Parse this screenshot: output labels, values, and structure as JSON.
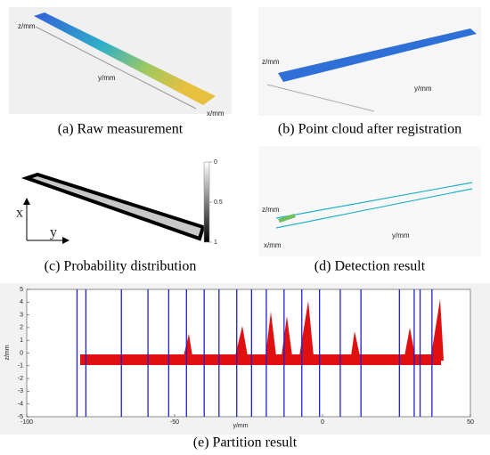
{
  "panels": {
    "a": {
      "caption": "(a) Raw measurement",
      "z_label": "z/mm",
      "y_label": "y/mm",
      "x_label": "x/mm"
    },
    "b": {
      "caption": "(b) Point cloud after registration",
      "z_label": "z/mm",
      "y_label": "y/mm"
    },
    "c": {
      "caption": "(c) Probability distribution",
      "x_label": "x",
      "y_label": "y",
      "colorbar_ticks": [
        0,
        0.5,
        1
      ]
    },
    "d": {
      "caption": "(d) Detection result",
      "z_label": "z/mm",
      "y_label": "y/mm",
      "x_label": "x/mm"
    },
    "e": {
      "caption": "(e) Partition result",
      "x_label": "y/mm",
      "y_label": "z/mm",
      "xlim": [
        -100,
        50
      ],
      "ylim": [
        -5,
        5
      ],
      "xticks": [
        -100,
        -50,
        0,
        50
      ],
      "yticks": [
        -5,
        -4,
        -3,
        -2,
        -1,
        0,
        1,
        2,
        3,
        4,
        5
      ],
      "partition_lines": [
        -83,
        -80,
        -68,
        -59,
        -52,
        -46,
        -40,
        -35,
        -29,
        -24,
        -19,
        -13,
        -7,
        -1,
        6,
        13,
        26,
        31,
        33,
        37
      ],
      "line_color": "#2020d0"
    }
  }
}
